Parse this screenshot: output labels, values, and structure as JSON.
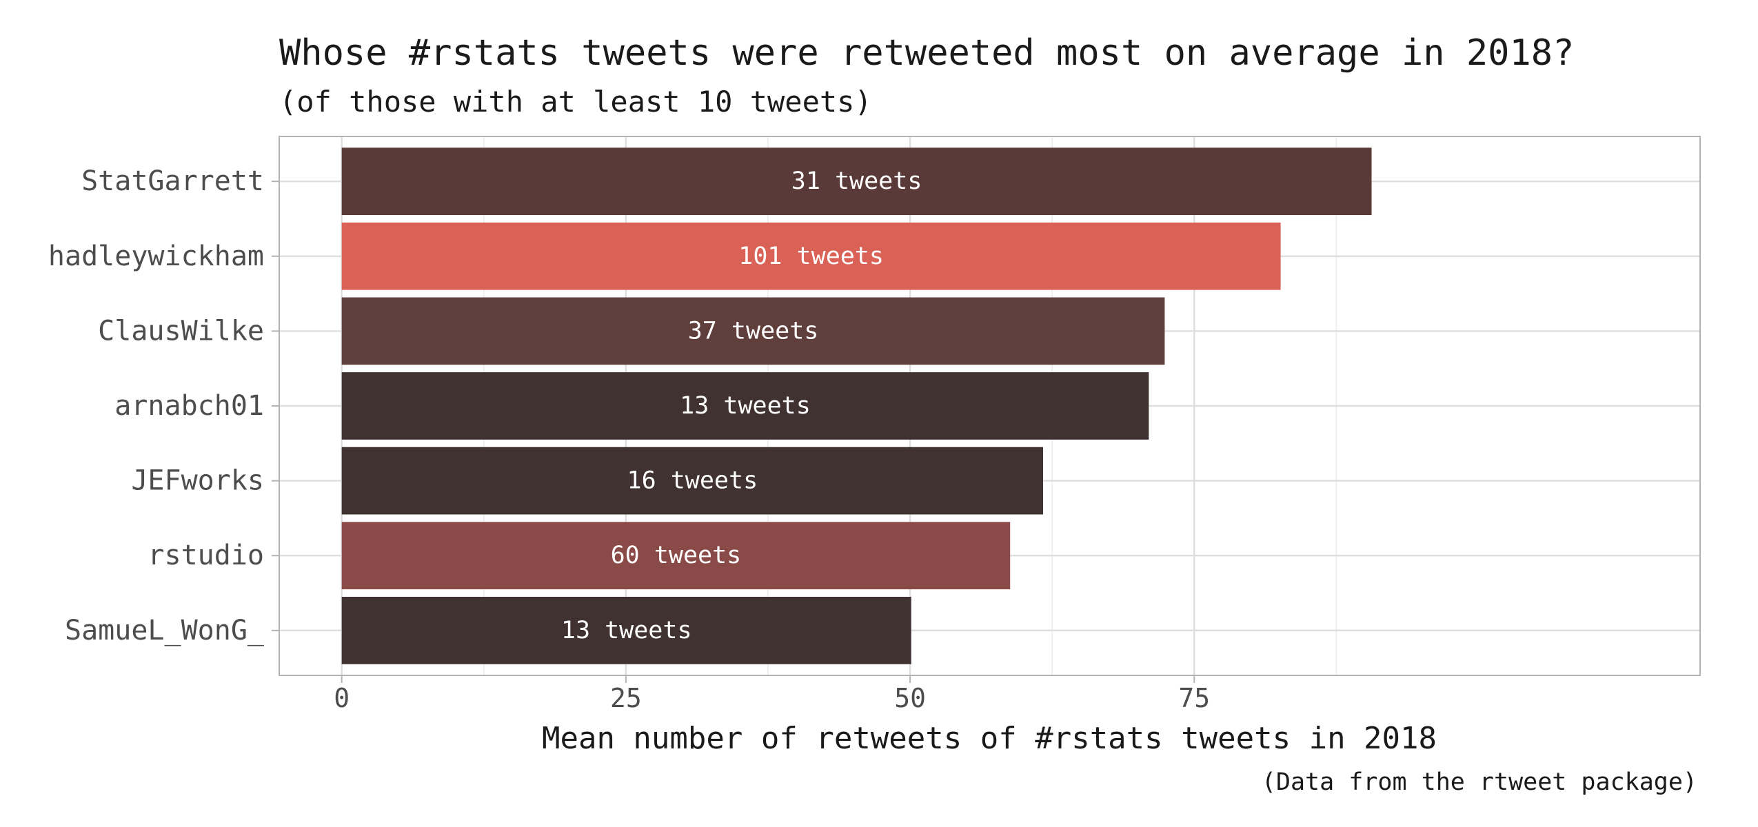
{
  "chart_data": {
    "type": "bar",
    "orientation": "horizontal",
    "title": "Whose #rstats tweets were retweeted most on average in 2018?",
    "subtitle": "(of those with at least 10 tweets)",
    "xlabel": "Mean number of retweets of #rstats tweets in 2018",
    "ylabel": "",
    "caption": "(Data from the rtweet package)",
    "xlim": [
      -5.5,
      119.5
    ],
    "x_ticks": [
      0,
      25,
      50,
      75
    ],
    "grid": true,
    "categories": [
      "StatGarrett",
      "hadleywickham",
      "ClausWilke",
      "arnabch01",
      "JEFworks",
      "rstudio",
      "SamueL_WonG_"
    ],
    "values": [
      90.6,
      82.6,
      72.4,
      71.0,
      61.7,
      58.8,
      50.1
    ],
    "bar_labels": [
      "31 tweets",
      "101 tweets",
      "37 tweets",
      "13 tweets",
      "16 tweets",
      "60 tweets",
      "13 tweets"
    ],
    "tweet_counts": [
      31,
      101,
      37,
      13,
      16,
      60,
      13
    ],
    "colors": [
      "#5a3a38",
      "#d96155",
      "#603e3b",
      "#3f3231",
      "#3f3231",
      "#8a4a47",
      "#3f3231"
    ]
  }
}
